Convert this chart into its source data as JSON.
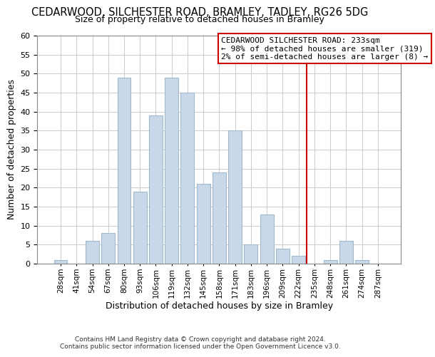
{
  "title": "CEDARWOOD, SILCHESTER ROAD, BRAMLEY, TADLEY, RG26 5DG",
  "subtitle": "Size of property relative to detached houses in Bramley",
  "xlabel": "Distribution of detached houses by size in Bramley",
  "ylabel": "Number of detached properties",
  "footer1": "Contains HM Land Registry data © Crown copyright and database right 2024.",
  "footer2": "Contains public sector information licensed under the Open Government Licence v3.0.",
  "bar_labels": [
    "28sqm",
    "41sqm",
    "54sqm",
    "67sqm",
    "80sqm",
    "93sqm",
    "106sqm",
    "119sqm",
    "132sqm",
    "145sqm",
    "158sqm",
    "171sqm",
    "183sqm",
    "196sqm",
    "209sqm",
    "222sqm",
    "235sqm",
    "248sqm",
    "261sqm",
    "274sqm",
    "287sqm"
  ],
  "bar_values": [
    1,
    0,
    6,
    8,
    49,
    19,
    39,
    49,
    45,
    21,
    24,
    35,
    5,
    13,
    4,
    2,
    0,
    1,
    6,
    1,
    0
  ],
  "bar_color": "#c8d8e8",
  "bar_edge_color": "#a0b8cc",
  "ylim": [
    0,
    60
  ],
  "yticks": [
    0,
    5,
    10,
    15,
    20,
    25,
    30,
    35,
    40,
    45,
    50,
    55,
    60
  ],
  "vline_color": "#cc0000",
  "annotation_title": "CEDARWOOD SILCHESTER ROAD: 233sqm",
  "annotation_line1": "← 98% of detached houses are smaller (319)",
  "annotation_line2": "2% of semi-detached houses are larger (8) →",
  "background_color": "#ffffff",
  "grid_color": "#cccccc"
}
